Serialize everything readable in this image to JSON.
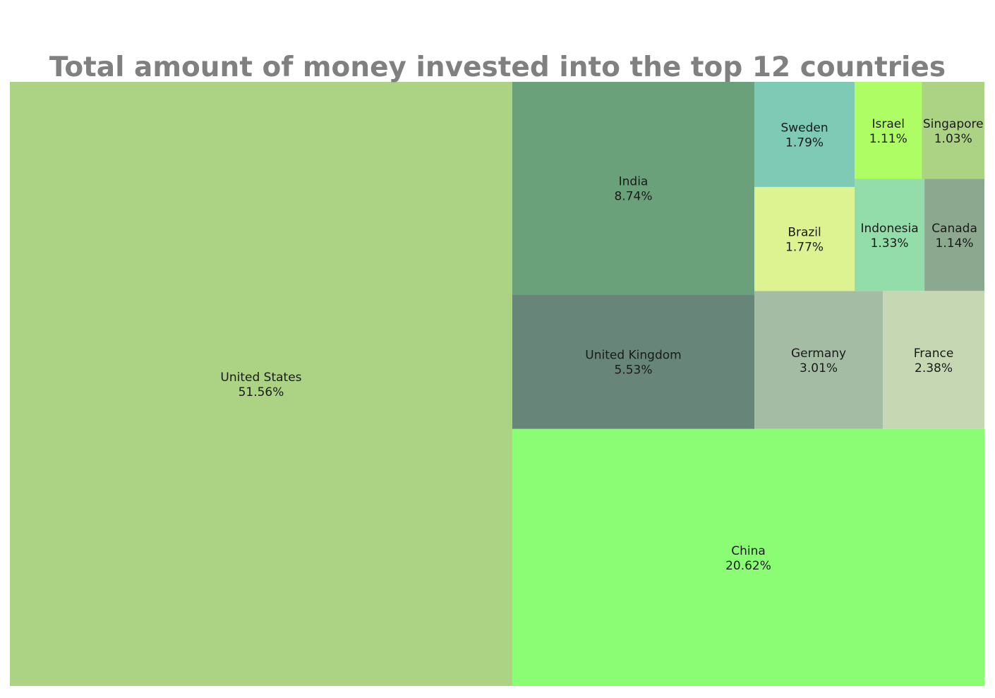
{
  "chart_data": {
    "type": "treemap",
    "title": "Total amount of money invested into the top 12 countries",
    "items": [
      {
        "label": "United States",
        "value_text": "51.56%",
        "value": 51.56,
        "color": "#acd384"
      },
      {
        "label": "China",
        "value_text": "20.62%",
        "value": 20.62,
        "color": "#8afd74"
      },
      {
        "label": "India",
        "value_text": "8.74%",
        "value": 8.74,
        "color": "#6ba17a"
      },
      {
        "label": "United Kingdom",
        "value_text": "5.53%",
        "value": 5.53,
        "color": "#678679"
      },
      {
        "label": "Germany",
        "value_text": "3.01%",
        "value": 3.01,
        "color": "#a5bca4"
      },
      {
        "label": "France",
        "value_text": "2.38%",
        "value": 2.38,
        "color": "#c6d8b3"
      },
      {
        "label": "Sweden",
        "value_text": "1.79%",
        "value": 1.79,
        "color": "#7ecab5"
      },
      {
        "label": "Brazil",
        "value_text": "1.77%",
        "value": 1.77,
        "color": "#ddf391"
      },
      {
        "label": "Indonesia",
        "value_text": "1.33%",
        "value": 1.33,
        "color": "#92ddaa"
      },
      {
        "label": "Canada",
        "value_text": "1.14%",
        "value": 1.14,
        "color": "#8ca88f"
      },
      {
        "label": "Israel",
        "value_text": "1.11%",
        "value": 1.11,
        "color": "#aefd64"
      },
      {
        "label": "Singapore",
        "value_text": "1.03%",
        "value": 1.03,
        "color": "#acd384"
      }
    ]
  }
}
